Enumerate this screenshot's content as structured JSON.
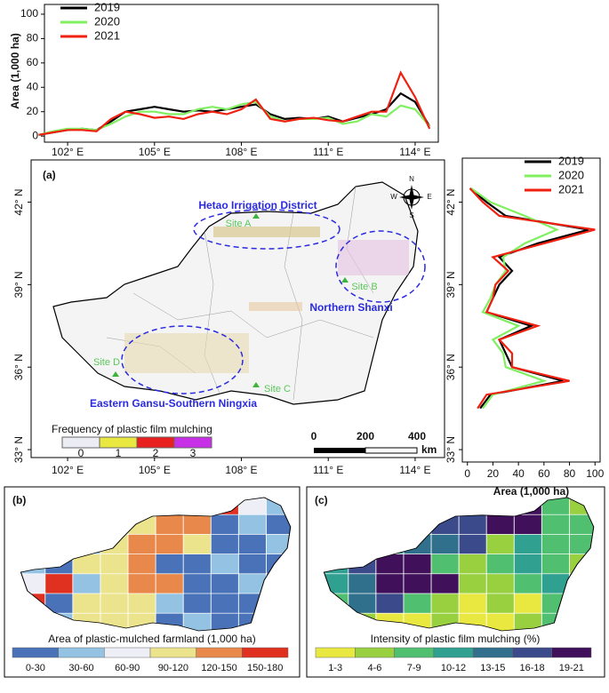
{
  "chart_data": [
    {
      "type": "line",
      "ylabel": "Area (1,000 ha)",
      "x": [
        101,
        101.5,
        102,
        102.5,
        103,
        103.5,
        104,
        104.5,
        105,
        105.5,
        106,
        106.5,
        107,
        107.5,
        108,
        108.5,
        109,
        109.5,
        110,
        110.5,
        111,
        111.5,
        112,
        112.5,
        113,
        113.5,
        114,
        114.5
      ],
      "series": [
        {
          "name": "2019",
          "color": "#000000",
          "values": [
            1,
            3,
            5,
            6,
            5,
            12,
            20,
            22,
            24,
            22,
            20,
            21,
            20,
            22,
            24,
            26,
            18,
            14,
            15,
            14,
            16,
            12,
            15,
            18,
            22,
            35,
            28,
            8
          ]
        },
        {
          "name": "2020",
          "color": "#80f060",
          "values": [
            1,
            4,
            6,
            6,
            5,
            10,
            16,
            20,
            20,
            18,
            18,
            22,
            24,
            22,
            26,
            28,
            16,
            12,
            14,
            14,
            15,
            10,
            12,
            18,
            16,
            25,
            22,
            8
          ]
        },
        {
          "name": "2021",
          "color": "#f02010",
          "values": [
            1,
            3,
            5,
            5,
            4,
            14,
            20,
            18,
            15,
            16,
            14,
            18,
            20,
            18,
            22,
            30,
            14,
            12,
            14,
            15,
            13,
            12,
            16,
            20,
            20,
            52,
            32,
            6
          ]
        }
      ],
      "xlim": [
        101.2,
        114.8
      ],
      "xticks": [
        {
          "value": 102,
          "label": "102° E"
        },
        {
          "value": 105,
          "label": "105° E"
        },
        {
          "value": 108,
          "label": "108° E"
        },
        {
          "value": 111,
          "label": "111° E"
        },
        {
          "value": 114,
          "label": "114° E"
        }
      ],
      "ylim": [
        -5,
        108
      ],
      "yticks": [
        0,
        20,
        40,
        60,
        80,
        100
      ],
      "legend": "upper left"
    },
    {
      "type": "line",
      "orientation": "horizontal",
      "xlabel": "Area (1,000 ha)",
      "y": [
        34.5,
        35,
        35.5,
        36,
        36.5,
        37,
        37.5,
        38,
        38.5,
        39,
        39.5,
        40,
        40.5,
        41,
        41.5,
        42,
        42.5
      ],
      "series": [
        {
          "name": "2019",
          "color": "#000000",
          "values": [
            10,
            18,
            75,
            35,
            30,
            25,
            50,
            15,
            20,
            25,
            35,
            25,
            55,
            95,
            30,
            15,
            2
          ]
        },
        {
          "name": "2020",
          "color": "#80f060",
          "values": [
            12,
            20,
            60,
            30,
            28,
            20,
            40,
            12,
            18,
            22,
            30,
            28,
            45,
            70,
            45,
            18,
            3
          ]
        },
        {
          "name": "2021",
          "color": "#f02010",
          "values": [
            8,
            15,
            80,
            35,
            35,
            25,
            55,
            15,
            20,
            22,
            32,
            20,
            60,
            100,
            25,
            12,
            2
          ]
        }
      ],
      "ylim": [
        32.55,
        43.6
      ],
      "yticks": [
        {
          "value": 33,
          "label": "33° N"
        },
        {
          "value": 36,
          "label": "36° N"
        },
        {
          "value": 39,
          "label": "39° N"
        },
        {
          "value": 42,
          "label": "42° N"
        }
      ],
      "xlim": [
        -4,
        104
      ],
      "xticks": [
        0,
        20,
        40,
        60,
        80,
        100
      ],
      "legend": "upper right"
    }
  ],
  "map_a": {
    "label": "(a)",
    "regions": [
      "Hetao Irrigation District",
      "Northern Shanxi",
      "Eastern Gansu-Southern Ningxia"
    ],
    "sites": [
      "Site A",
      "Site B",
      "Site C",
      "Site D"
    ],
    "legend": {
      "title": "Frequency of plastic film mulching",
      "classes": [
        {
          "label": "0",
          "color": "#ececf4"
        },
        {
          "label": "1",
          "color": "#e8e840"
        },
        {
          "label": "2",
          "color": "#e82020"
        },
        {
          "label": "3",
          "color": "#c830e8"
        }
      ]
    },
    "scale_bar": {
      "labels": [
        "0",
        "200",
        "400"
      ],
      "unit": "km"
    },
    "compass": {
      "n": "N",
      "s": "S",
      "e": "E",
      "w": "W"
    }
  },
  "map_b": {
    "label": "(b)",
    "legend": {
      "title": "Area of plastic-mulched farmland (1,000 ha)",
      "classes": [
        {
          "label": "0-30",
          "color": "#4a72b8"
        },
        {
          "label": "30-60",
          "color": "#94c2e2"
        },
        {
          "label": "60-90",
          "color": "#eeeef6"
        },
        {
          "label": "90-120",
          "color": "#ece48c"
        },
        {
          "label": "120-150",
          "color": "#e8884a"
        },
        {
          "label": "150-180",
          "color": "#e03020"
        }
      ]
    }
  },
  "map_c": {
    "label": "(c)",
    "legend": {
      "title": "Intensity of plastic film mulching (%)",
      "classes": [
        {
          "label": "1-3",
          "color": "#e8e840"
        },
        {
          "label": "4-6",
          "color": "#98d040"
        },
        {
          "label": "7-9",
          "color": "#50c070"
        },
        {
          "label": "10-12",
          "color": "#30a090"
        },
        {
          "label": "13-15",
          "color": "#30708c"
        },
        {
          "label": "16-18",
          "color": "#3a4a8a"
        },
        {
          "label": "19-21",
          "color": "#40105a"
        }
      ]
    }
  }
}
